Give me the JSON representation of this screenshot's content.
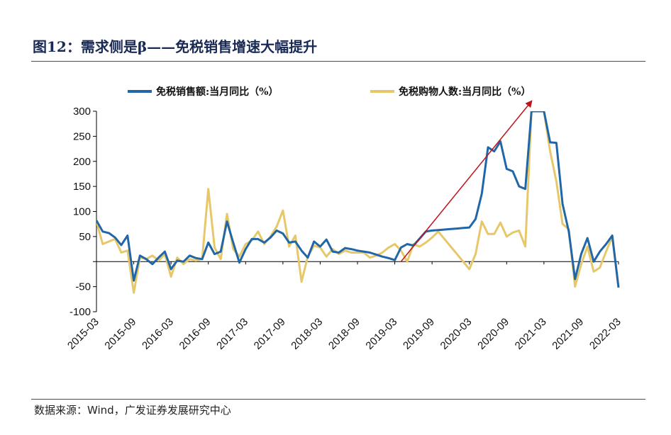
{
  "header": {
    "title": "图12：需求侧是β——免税销售增速大幅提升"
  },
  "footer": {
    "source": "数据来源：Wind，广发证券发展研究中心"
  },
  "colors": {
    "series1": "#2166a6",
    "series2": "#e6c86a",
    "arrow": "#c0141c",
    "axis": "#000000"
  },
  "chart_data": {
    "type": "line",
    "xlabel": "",
    "ylabel": "",
    "ylim": [
      -100,
      300
    ],
    "yticks": [
      -100,
      -50,
      0,
      50,
      100,
      150,
      200,
      250,
      300
    ],
    "ytick_labels": [
      "-100",
      "-50",
      "",
      "50",
      "100",
      "150",
      "200",
      "250",
      "300"
    ],
    "xlim": [
      "2015-03",
      "2022-03"
    ],
    "x_tick_labels": [
      "2015-03",
      "2015-09",
      "2016-03",
      "2016-09",
      "2017-03",
      "2017-09",
      "2018-03",
      "2018-09",
      "2019-03",
      "2019-09",
      "2020-03",
      "2020-09",
      "2021-03",
      "2021-09",
      "2022-03"
    ],
    "legend_position": "top",
    "grid": false,
    "series": [
      {
        "name": "免税销售额:当月同比（%）",
        "color": "#2166a6",
        "points": [
          [
            "2015-03",
            82
          ],
          [
            "2015-04",
            60
          ],
          [
            "2015-05",
            57
          ],
          [
            "2015-06",
            48
          ],
          [
            "2015-07",
            33
          ],
          [
            "2015-08",
            52
          ],
          [
            "2015-09",
            -38
          ],
          [
            "2015-10",
            12
          ],
          [
            "2015-11",
            5
          ],
          [
            "2015-12",
            -5
          ],
          [
            "2016-01",
            8
          ],
          [
            "2016-02",
            20
          ],
          [
            "2016-03",
            -15
          ],
          [
            "2016-04",
            2
          ],
          [
            "2016-05",
            0
          ],
          [
            "2016-06",
            12
          ],
          [
            "2016-07",
            7
          ],
          [
            "2016-08",
            5
          ],
          [
            "2016-09",
            38
          ],
          [
            "2016-10",
            15
          ],
          [
            "2016-11",
            20
          ],
          [
            "2016-12",
            80
          ],
          [
            "2017-01",
            38
          ],
          [
            "2017-02",
            -2
          ],
          [
            "2017-03",
            25
          ],
          [
            "2017-04",
            45
          ],
          [
            "2017-05",
            45
          ],
          [
            "2017-06",
            38
          ],
          [
            "2017-07",
            48
          ],
          [
            "2017-08",
            62
          ],
          [
            "2017-09",
            56
          ],
          [
            "2017-10",
            38
          ],
          [
            "2017-11",
            40
          ],
          [
            "2017-12",
            22
          ],
          [
            "2018-01",
            8
          ],
          [
            "2018-02",
            40
          ],
          [
            "2018-03",
            30
          ],
          [
            "2018-04",
            44
          ],
          [
            "2018-05",
            20
          ],
          [
            "2018-06",
            18
          ],
          [
            "2018-07",
            27
          ],
          [
            "2018-08",
            25
          ],
          [
            "2018-09",
            22
          ],
          [
            "2018-10",
            20
          ],
          [
            "2018-11",
            18
          ],
          [
            "2018-12",
            14
          ],
          [
            "2019-01",
            10
          ],
          [
            "2019-02",
            7
          ],
          [
            "2019-03",
            3
          ],
          [
            "2019-04",
            28
          ],
          [
            "2019-05",
            35
          ],
          [
            "2019-06",
            32
          ],
          [
            "2019-07",
            46
          ],
          [
            "2019-08",
            60
          ],
          [
            "2019-09",
            62
          ],
          [
            "2019-10",
            63
          ],
          [
            "2019-11",
            64
          ],
          [
            "2019-12",
            65
          ],
          [
            "2020-01",
            66
          ],
          [
            "2020-02",
            67
          ],
          [
            "2020-03",
            68
          ],
          [
            "2020-04",
            85
          ],
          [
            "2020-05",
            135
          ],
          [
            "2020-06",
            228
          ],
          [
            "2020-07",
            220
          ],
          [
            "2020-08",
            240
          ],
          [
            "2020-09",
            185
          ],
          [
            "2020-10",
            180
          ],
          [
            "2020-11",
            150
          ],
          [
            "2020-12",
            145
          ],
          [
            "2021-01",
            300
          ],
          [
            "2021-02",
            300
          ],
          [
            "2021-03",
            300
          ],
          [
            "2021-04",
            238
          ],
          [
            "2021-05",
            237
          ],
          [
            "2021-06",
            115
          ],
          [
            "2021-07",
            60
          ],
          [
            "2021-08",
            -35
          ],
          [
            "2021-09",
            15
          ],
          [
            "2021-10",
            47
          ],
          [
            "2021-11",
            0
          ],
          [
            "2021-12",
            20
          ],
          [
            "2022-01",
            35
          ],
          [
            "2022-02",
            52
          ],
          [
            "2022-03",
            -52
          ]
        ]
      },
      {
        "name": "免税购物人数:当月同比（%）",
        "color": "#e6c86a",
        "points": [
          [
            "2015-03",
            80
          ],
          [
            "2015-04",
            35
          ],
          [
            "2015-05",
            40
          ],
          [
            "2015-06",
            45
          ],
          [
            "2015-07",
            18
          ],
          [
            "2015-08",
            22
          ],
          [
            "2015-09",
            -62
          ],
          [
            "2015-10",
            8
          ],
          [
            "2015-11",
            5
          ],
          [
            "2015-12",
            12
          ],
          [
            "2016-01",
            2
          ],
          [
            "2016-02",
            15
          ],
          [
            "2016-03",
            -30
          ],
          [
            "2016-04",
            8
          ],
          [
            "2016-05",
            -5
          ],
          [
            "2016-06",
            5
          ],
          [
            "2016-07",
            2
          ],
          [
            "2016-08",
            5
          ],
          [
            "2016-09",
            145
          ],
          [
            "2016-10",
            28
          ],
          [
            "2016-11",
            5
          ],
          [
            "2016-12",
            95
          ],
          [
            "2017-01",
            25
          ],
          [
            "2017-02",
            10
          ],
          [
            "2017-03",
            35
          ],
          [
            "2017-04",
            42
          ],
          [
            "2017-05",
            60
          ],
          [
            "2017-06",
            35
          ],
          [
            "2017-07",
            50
          ],
          [
            "2017-08",
            70
          ],
          [
            "2017-09",
            102
          ],
          [
            "2017-10",
            30
          ],
          [
            "2017-11",
            52
          ],
          [
            "2017-12",
            -40
          ],
          [
            "2018-01",
            10
          ],
          [
            "2018-02",
            32
          ],
          [
            "2018-03",
            28
          ],
          [
            "2018-04",
            10
          ],
          [
            "2018-05",
            25
          ],
          [
            "2018-06",
            15
          ],
          [
            "2018-07",
            22
          ],
          [
            "2018-08",
            18
          ],
          [
            "2018-09",
            18
          ],
          [
            "2018-10",
            18
          ],
          [
            "2018-11",
            8
          ],
          [
            "2018-12",
            12
          ],
          [
            "2019-01",
            18
          ],
          [
            "2019-02",
            28
          ],
          [
            "2019-03",
            35
          ],
          [
            "2019-04",
            22
          ],
          [
            "2019-05",
            0
          ],
          [
            "2019-06",
            35
          ],
          [
            "2019-07",
            30
          ],
          [
            "2019-08",
            38
          ],
          [
            "2019-09",
            48
          ],
          [
            "2019-10",
            60
          ],
          [
            "2019-11",
            45
          ],
          [
            "2019-12",
            30
          ],
          [
            "2020-01",
            15
          ],
          [
            "2020-02",
            0
          ],
          [
            "2020-03",
            -15
          ],
          [
            "2020-04",
            15
          ],
          [
            "2020-05",
            80
          ],
          [
            "2020-06",
            55
          ],
          [
            "2020-07",
            55
          ],
          [
            "2020-08",
            78
          ],
          [
            "2020-09",
            50
          ],
          [
            "2020-10",
            58
          ],
          [
            "2020-11",
            62
          ],
          [
            "2020-12",
            30
          ],
          [
            "2021-01",
            300
          ],
          [
            "2021-02",
            300
          ],
          [
            "2021-03",
            300
          ],
          [
            "2021-04",
            220
          ],
          [
            "2021-05",
            160
          ],
          [
            "2021-06",
            75
          ],
          [
            "2021-07",
            65
          ],
          [
            "2021-08",
            -50
          ],
          [
            "2021-09",
            -5
          ],
          [
            "2021-10",
            30
          ],
          [
            "2021-11",
            -20
          ],
          [
            "2021-12",
            -12
          ],
          [
            "2022-01",
            20
          ],
          [
            "2022-02",
            50
          ],
          [
            "2022-03",
            -50
          ]
        ]
      }
    ],
    "annotations": [
      {
        "type": "arrow",
        "from": [
          "2019-04",
          0
        ],
        "to": [
          "2021-01",
          320
        ]
      }
    ]
  }
}
